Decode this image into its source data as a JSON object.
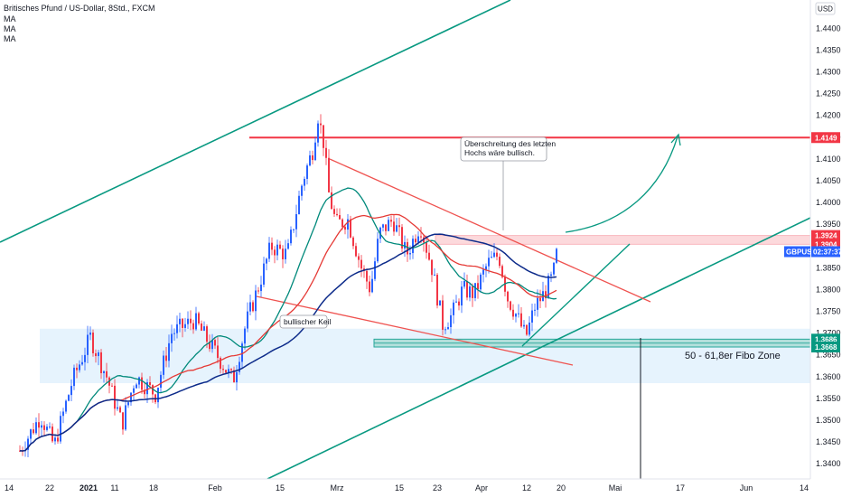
{
  "header": {
    "title": "Britisches Pfund / US-Dollar, 8Std., FXCM",
    "indicators": [
      "MA",
      "MA",
      "MA"
    ],
    "currency": "USD"
  },
  "colors": {
    "up": "#2962ff",
    "down": "#f23645",
    "ma_fast": "#e53935",
    "ma_mid": "#00897b",
    "ma_slow": "#0d2b8a",
    "channel": "#089981",
    "wedge": "#ef5350",
    "resistance": "#f23645",
    "zone": "#bbdefb",
    "fibo_box": "#26a69a"
  },
  "chart_data": {
    "type": "candlestick",
    "symbol": "GBPUSD",
    "x_ticks": [
      "14",
      "22",
      "2021",
      "11",
      "18",
      "Feb",
      "15",
      "Mrz",
      "15",
      "23",
      "Apr",
      "12",
      "20",
      "Mai",
      "17",
      "Jun",
      "14"
    ],
    "y_ticks": [
      "1.4400",
      "1.4350",
      "1.4300",
      "1.4250",
      "1.4200",
      "1.4150",
      "1.4100",
      "1.4050",
      "1.4000",
      "1.3950",
      "1.3850",
      "1.3800",
      "1.3750",
      "1.3700",
      "1.3650",
      "1.3600",
      "1.3550",
      "1.3500",
      "1.3450",
      "1.3400"
    ],
    "ylim": [
      1.3365,
      1.4465
    ],
    "price_tags": [
      {
        "label": "1.4149",
        "value": 1.4149,
        "color": "#f23645"
      },
      {
        "label": "1.3924",
        "value": 1.3924,
        "color": "#f23645"
      },
      {
        "label": "1.3904",
        "value": 1.3904,
        "color": "#f23645"
      },
      {
        "label": "1.3686",
        "value": 1.3686,
        "color": "#089981"
      },
      {
        "label": "1.3668",
        "value": 1.3668,
        "color": "#089981"
      }
    ],
    "current_price": {
      "symbol": "GBPUSD",
      "time": "02:37:37"
    },
    "annotations": {
      "breakout_note": [
        "Überschreitung des letzten",
        "Hochs wäre bullisch."
      ],
      "wedge_label": "bullischer Keil",
      "fibo_zone_label": "50 - 61,8er Fibo Zone"
    },
    "resistance_level": 1.4149,
    "fibo_zone": [
      1.3668,
      1.3686
    ],
    "support_zone": [
      1.3585,
      1.371
    ],
    "resistance_zone": [
      1.3904,
      1.3924
    ]
  }
}
